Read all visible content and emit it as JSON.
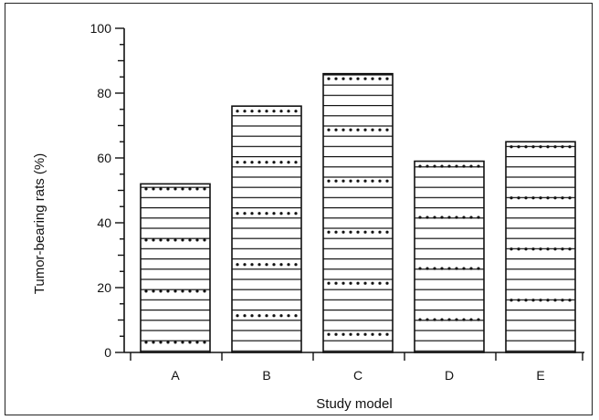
{
  "chart_data": {
    "type": "bar",
    "title": "",
    "xlabel": "Study model",
    "ylabel": "Tumor-bearing rats (%)",
    "categories": [
      "A",
      "B",
      "C",
      "D",
      "E"
    ],
    "values": [
      52,
      76,
      86,
      59,
      65
    ],
    "ylim": [
      0,
      100
    ],
    "yticks": [
      0,
      20,
      40,
      60,
      80,
      100
    ],
    "grid": false,
    "legend": "none",
    "colors": {
      "ink": "#111111",
      "background": "#ffffff"
    }
  }
}
